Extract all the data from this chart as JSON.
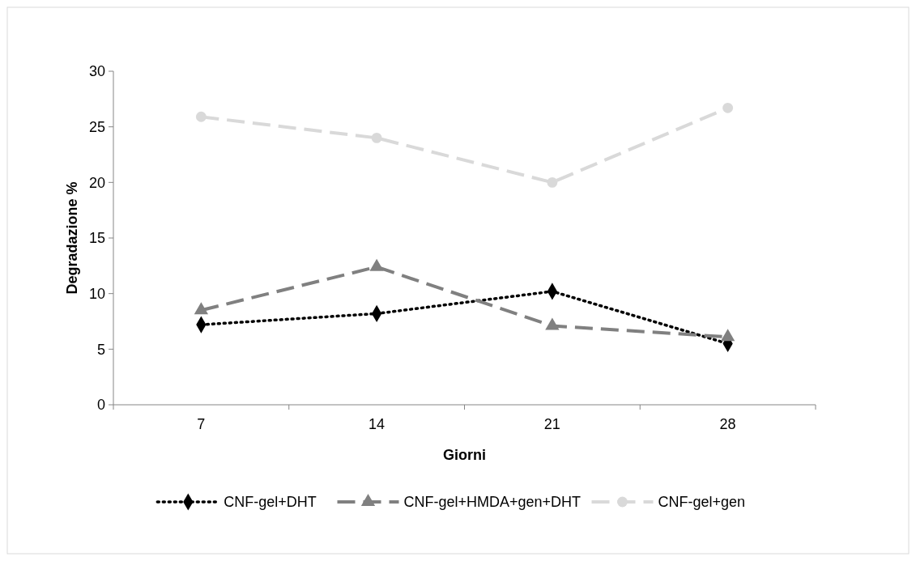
{
  "chart_data": {
    "type": "line",
    "xlabel": "Giorni",
    "ylabel": "Degradazione %",
    "categories": [
      "7",
      "14",
      "21",
      "28"
    ],
    "ylim": [
      0,
      30
    ],
    "yticks": [
      0,
      5,
      10,
      15,
      20,
      25,
      30
    ],
    "grid": false,
    "legend": "bottom",
    "series": [
      {
        "name": "CNF-gel+DHT",
        "color": "#000000",
        "marker": "diamond",
        "line_style": "dotted",
        "values": [
          7.2,
          8.2,
          10.2,
          5.5
        ]
      },
      {
        "name": "CNF-gel+HMDA+gen+DHT",
        "color": "#808080",
        "marker": "triangle",
        "line_style": "dashed",
        "values": [
          8.5,
          12.4,
          7.1,
          6.1
        ]
      },
      {
        "name": "CNF-gel+gen",
        "color": "#d9d9d9",
        "marker": "circle",
        "line_style": "dashed",
        "values": [
          25.9,
          24.0,
          20.0,
          26.7
        ]
      }
    ]
  }
}
